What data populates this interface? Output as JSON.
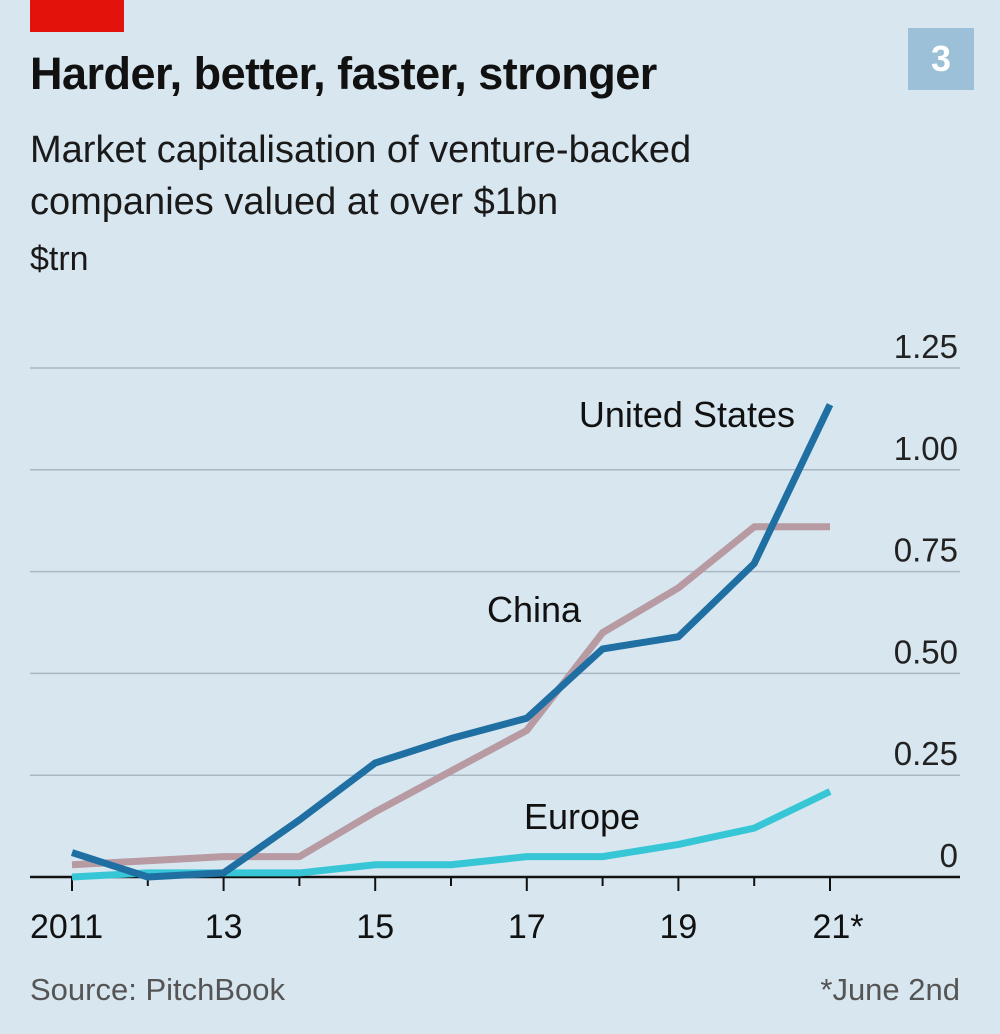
{
  "header": {
    "chart_number": "3",
    "title": "Harder, better, faster, stronger",
    "subtitle": "Market capitalisation of venture-backed companies valued at over $1bn",
    "unit": "$trn"
  },
  "footer": {
    "source": "Source: PitchBook",
    "note": "*June 2nd"
  },
  "colors": {
    "background": "#d7e6ef",
    "united_states": "#1f6fa3",
    "china": "#b79aa2",
    "europe": "#36c6d6",
    "grid": "#a9b8c2",
    "accent": "#e3120b"
  },
  "chart_data": {
    "type": "line",
    "title": "Harder, better, faster, stronger",
    "ylabel": "$trn",
    "xlabel": "",
    "x": [
      2011,
      2012,
      2013,
      2014,
      2015,
      2016,
      2017,
      2018,
      2019,
      2020,
      2021
    ],
    "x_tick_values": [
      2011,
      2013,
      2015,
      2017,
      2019,
      2021
    ],
    "x_tick_labels": [
      "2011",
      "13",
      "15",
      "17",
      "19",
      "21*"
    ],
    "ylim": [
      0,
      1.25
    ],
    "y_ticks": [
      0,
      0.25,
      0.5,
      0.75,
      1.0,
      1.25
    ],
    "y_tick_labels": [
      "0",
      "0.25",
      "0.50",
      "0.75",
      "1.00",
      "1.25"
    ],
    "grid": true,
    "series": [
      {
        "name": "United States",
        "label": "United States",
        "color": "#1f6fa3",
        "values": [
          0.06,
          0.0,
          0.01,
          0.14,
          0.28,
          0.34,
          0.39,
          0.56,
          0.59,
          0.77,
          1.16
        ]
      },
      {
        "name": "China",
        "label": "China",
        "color": "#b79aa2",
        "values": [
          0.03,
          0.04,
          0.05,
          0.05,
          0.16,
          0.26,
          0.36,
          0.6,
          0.71,
          0.86,
          0.86
        ]
      },
      {
        "name": "Europe",
        "label": "Europe",
        "color": "#36c6d6",
        "values": [
          0.0,
          0.01,
          0.01,
          0.01,
          0.03,
          0.03,
          0.05,
          0.05,
          0.08,
          0.12,
          0.21
        ]
      }
    ]
  }
}
